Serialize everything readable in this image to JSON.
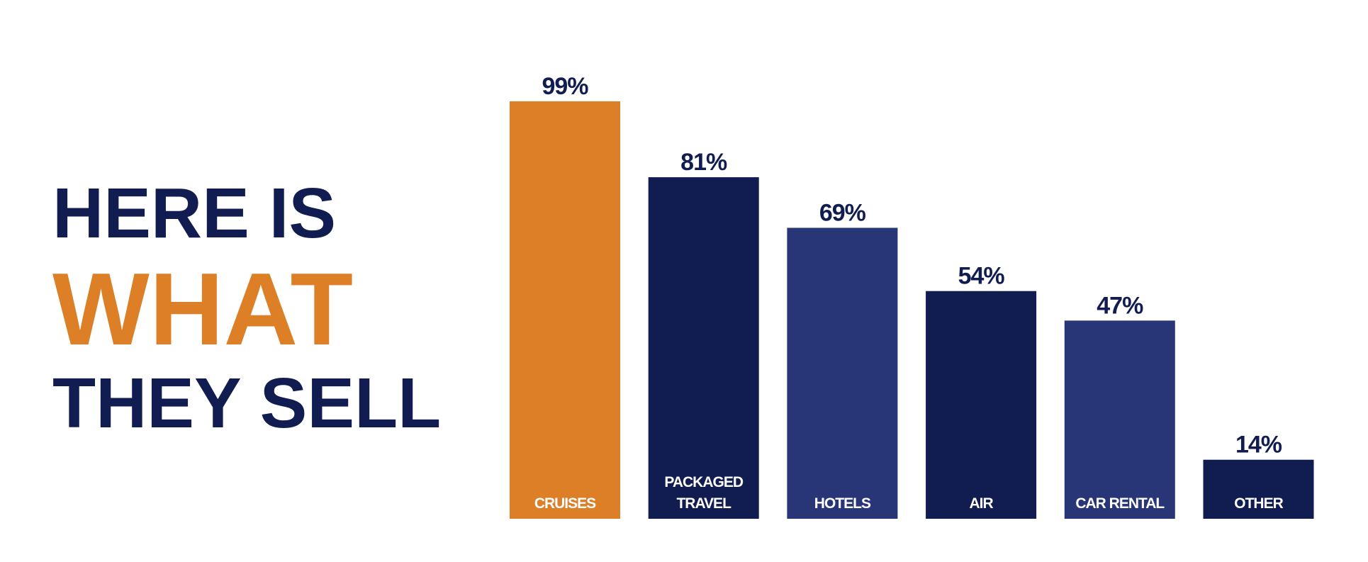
{
  "chart_data": {
    "type": "bar",
    "title_lines": [
      {
        "text": "HERE IS",
        "color": "#111c51"
      },
      {
        "text": "WHAT",
        "color": "#dc7f27"
      },
      {
        "text": "THEY SELL",
        "color": "#111c51"
      }
    ],
    "categories": [
      "CRUISES",
      "PACKAGED TRAVEL",
      "HOTELS",
      "AIR",
      "CAR RENTAL",
      "OTHER"
    ],
    "values": [
      99,
      81,
      69,
      54,
      47,
      14
    ],
    "value_labels": [
      "99%",
      "81%",
      "69%",
      "54%",
      "47%",
      "14%"
    ],
    "colors": [
      "#dc7f27",
      "#111c51",
      "#283677",
      "#111c51",
      "#283677",
      "#111c51"
    ],
    "label_color": "#111c51",
    "ylim": [
      0,
      100
    ]
  }
}
